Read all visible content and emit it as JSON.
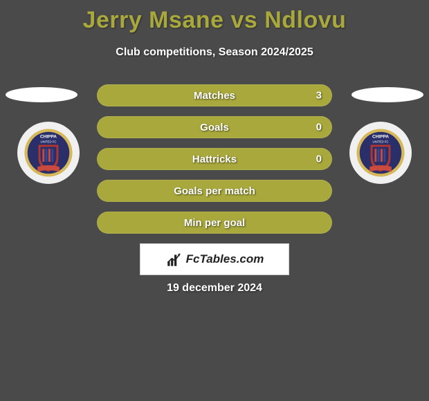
{
  "title": "Jerry Msane vs Ndlovu",
  "subtitle": "Club competitions, Season 2024/2025",
  "date": "19 december 2024",
  "logo_text": "FcTables.com",
  "colors": {
    "title": "#a8a83d",
    "bar_full": "#a8a83d",
    "bar_empty": "#7a7a45",
    "background": "#4a4a4a",
    "text": "#ffffff"
  },
  "crest": {
    "top_text": "CHIPPA",
    "mid_text": "UNITED FC",
    "ring_outer": "#d4b85a",
    "ring_inner": "#2a2f6a",
    "shield_outer": "#b0362f",
    "shield_inner": "#2a2f6a",
    "banner": "#c94a3f"
  },
  "bars": [
    {
      "label": "Matches",
      "fill_pct": 100,
      "value": "3",
      "show_value": true
    },
    {
      "label": "Goals",
      "fill_pct": 100,
      "value": "0",
      "show_value": true
    },
    {
      "label": "Hattricks",
      "fill_pct": 100,
      "value": "0",
      "show_value": true
    },
    {
      "label": "Goals per match",
      "fill_pct": 100,
      "value": "",
      "show_value": false
    },
    {
      "label": "Min per goal",
      "fill_pct": 100,
      "value": "",
      "show_value": false
    }
  ]
}
